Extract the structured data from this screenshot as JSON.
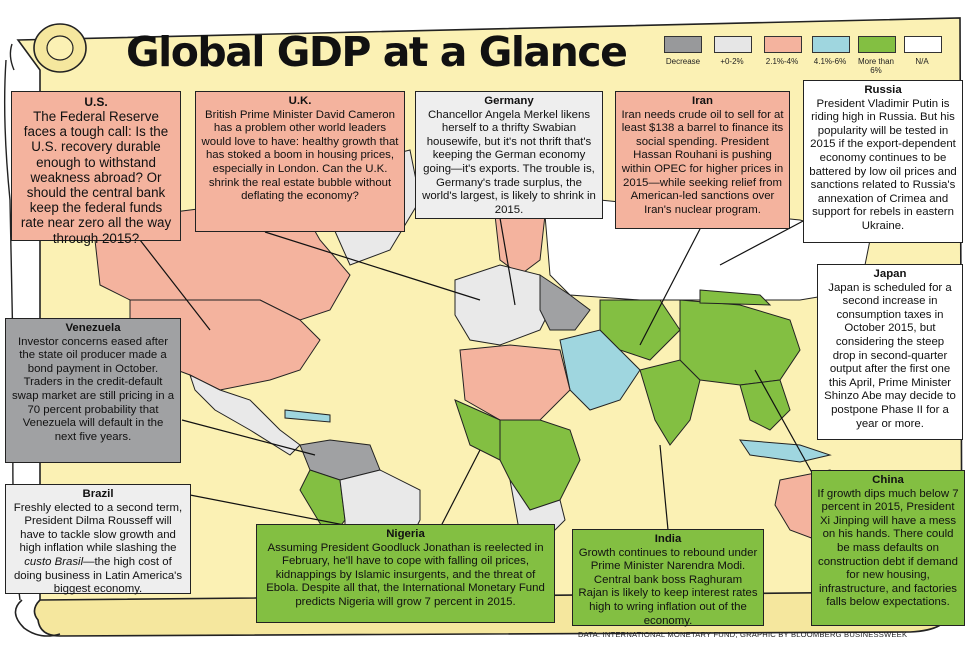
{
  "title": "Global GDP at a Glance",
  "legend": {
    "items": [
      {
        "label": "Decrease",
        "color": "#98999b"
      },
      {
        "label": "+0-2%",
        "color": "#e6e6e6"
      },
      {
        "label": "2.1%-4%",
        "color": "#f4b39e"
      },
      {
        "label": "4.1%-6%",
        "color": "#9fd6df"
      },
      {
        "label": "More than 6%",
        "color": "#83bf42"
      },
      {
        "label": "N/A",
        "color": "#ffffff"
      }
    ]
  },
  "annotations": {
    "us": {
      "title": "U.S.",
      "body": "The Federal Reserve faces a tough call: Is the U.S. recovery durable enough to withstand weakness abroad? Or should the central bank keep the federal funds rate near zero all the way through 2015?"
    },
    "uk": {
      "title": "U.K.",
      "body": "British Prime Minister David Cameron has a problem other world leaders would love to have: healthy growth that has stoked a boom in housing prices, especially in London. Can the U.K. shrink the real estate bubble without deflating the economy?"
    },
    "germany": {
      "title": "Germany",
      "body": "Chancellor Angela Merkel likens herself to a thrifty Swabian housewife, but it's not thrift that's keeping the German economy going—it's exports. The trouble is, Germany's trade surplus, the world's largest, is likely to shrink in 2015."
    },
    "iran": {
      "title": "Iran",
      "body": "Iran needs crude oil to sell for at least $138 a barrel to finance its social spending. President Hassan Rouhani is pushing within OPEC for higher prices in 2015—while seeking relief from American-led sanctions over Iran's nuclear program."
    },
    "russia": {
      "title": "Russia",
      "body": "President Vladimir Putin is riding high in Russia. But his popularity will be tested in 2015 if the export-dependent economy continues to be battered by low oil prices and sanctions related to Russia's annexation of Crimea and support for rebels in eastern Ukraine."
    },
    "japan": {
      "title": "Japan",
      "body": "Japan is scheduled for a second increase in consumption taxes in October 2015, but considering the steep drop in second-quarter output after the first one this April, Prime Minister Shinzo Abe may decide to postpone Phase II for a year or more."
    },
    "venezuela": {
      "title": "Venezuela",
      "body": "Investor concerns eased after the state oil producer made a bond payment in October. Traders in the credit-default swap market are still pricing in a 70 percent probability that Venezuela will default in the next five years."
    },
    "brazil": {
      "title": "Brazil",
      "body_pre": "Freshly elected to a second term, President Dilma Rousseff will have to tackle slow growth and high inflation while slashing the ",
      "body_em": "custo Brasil",
      "body_post": "—the high cost of doing business in Latin America's biggest economy."
    },
    "nigeria": {
      "title": "Nigeria",
      "body": "Assuming President Goodluck Jonathan is reelected in February, he'll have to cope with falling oil prices, kidnappings by Islamic insurgents, and the threat of Ebola. Despite all that, the International Monetary Fund predicts Nigeria will grow 7 percent in 2015."
    },
    "india": {
      "title": "India",
      "body": "Growth continues to rebound under Prime Minister Narendra Modi. Central bank boss Raghuram Rajan is likely to keep interest rates high to wring inflation out of the economy."
    },
    "china": {
      "title": "China",
      "body": "If growth dips much below 7 percent in 2015, President Xi Jinping will have a mess on his hands. There could be mass defaults on construction debt if demand for new housing, infrastructure, and factories falls below expectations."
    }
  },
  "source": "DATA: INTERNATIONAL MONETARY FUND; GRAPHIC BY BLOOMBERG BUSINESSWEEK"
}
